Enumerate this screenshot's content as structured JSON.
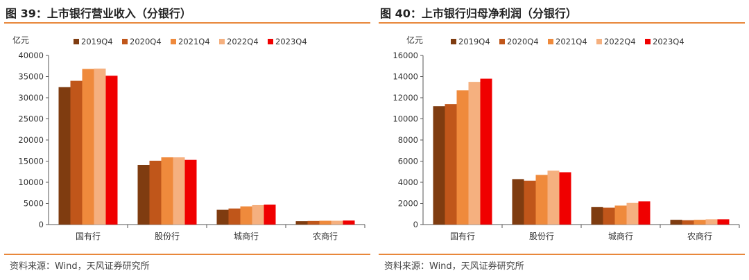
{
  "colors": {
    "rule": "#e8873a",
    "series": [
      "#7f3c10",
      "#c0561a",
      "#ef8a3c",
      "#f5b07f",
      "#f00000"
    ]
  },
  "panels": [
    {
      "title": "图 39：上市银行营业收入（分银行）",
      "source": "资料来源：Wind，天风证券研究所",
      "chart_data": {
        "type": "bar",
        "unit_label": "亿元",
        "categories": [
          "国有行",
          "股份行",
          "城商行",
          "农商行"
        ],
        "series": [
          {
            "name": "2019Q4",
            "values": [
              32500,
              14100,
              3500,
              800
            ]
          },
          {
            "name": "2020Q4",
            "values": [
              34000,
              15100,
              3800,
              850
            ]
          },
          {
            "name": "2021Q4",
            "values": [
              36800,
              15900,
              4300,
              900
            ]
          },
          {
            "name": "2022Q4",
            "values": [
              36900,
              15900,
              4600,
              900
            ]
          },
          {
            "name": "2023Q4",
            "values": [
              35200,
              15300,
              4700,
              950
            ]
          }
        ],
        "ylim": [
          0,
          40000
        ],
        "yticks": [
          0,
          5000,
          10000,
          15000,
          20000,
          25000,
          30000,
          35000,
          40000
        ],
        "legend": "top"
      }
    },
    {
      "title": "图 40：上市银行归母净利润（分银行）",
      "source": "资料来源：Wind，天风证券研究所",
      "chart_data": {
        "type": "bar",
        "unit_label": "亿元",
        "categories": [
          "国有行",
          "股份行",
          "城商行",
          "农商行"
        ],
        "series": [
          {
            "name": "2019Q4",
            "values": [
              11200,
              4300,
              1650,
              450
            ]
          },
          {
            "name": "2020Q4",
            "values": [
              11400,
              4150,
              1600,
              410
            ]
          },
          {
            "name": "2021Q4",
            "values": [
              12700,
              4700,
              1800,
              450
            ]
          },
          {
            "name": "2022Q4",
            "values": [
              13500,
              5100,
              2050,
              500
            ]
          },
          {
            "name": "2023Q4",
            "values": [
              13800,
              4950,
              2200,
              500
            ]
          }
        ],
        "ylim": [
          0,
          16000
        ],
        "yticks": [
          0,
          2000,
          4000,
          6000,
          8000,
          10000,
          12000,
          14000,
          16000
        ],
        "legend": "top"
      }
    }
  ]
}
